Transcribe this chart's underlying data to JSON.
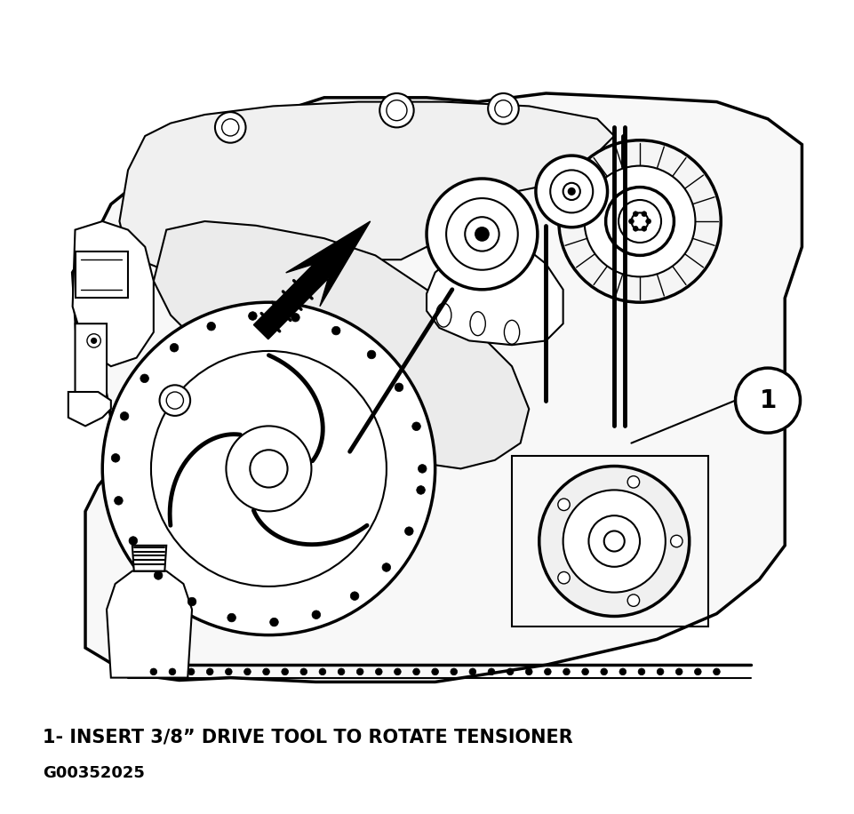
{
  "label_1": "1- INSERT 3/8” DRIVE TOOL TO ROTATE TENSIONER",
  "label_code": "G00352025",
  "bg_color": "#ffffff",
  "fig_width": 9.62,
  "fig_height": 9.16,
  "dpi": 100,
  "callout_number": "1",
  "label_fontsize": 15,
  "code_fontsize": 13,
  "lw_main": 1.5,
  "lw_thick": 2.5,
  "lw_thin": 1.0,
  "lw_belt": 3.5
}
